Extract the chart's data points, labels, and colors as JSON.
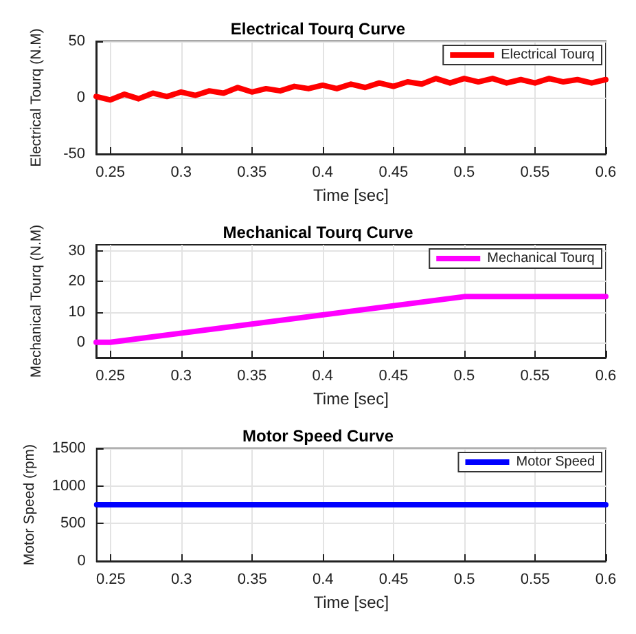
{
  "chart_data": [
    {
      "type": "line",
      "title": "Electrical Tourq Curve",
      "xlabel": "Time [sec]",
      "ylabel": "Electrical Tourq (N.M)",
      "xlim": [
        0.24,
        0.6
      ],
      "xticks": [
        0.25,
        0.3,
        0.35,
        0.4,
        0.45,
        0.5,
        0.55,
        0.6
      ],
      "ylim": [
        -50,
        50
      ],
      "yticks": [
        -50,
        0,
        50
      ],
      "grid": true,
      "legend": "top right",
      "marker": "none",
      "line_style": "solid",
      "series": [
        {
          "name": "Electrical Tourq",
          "color": "#ff0000",
          "x": [
            0.24,
            0.25,
            0.26,
            0.27,
            0.28,
            0.29,
            0.3,
            0.31,
            0.32,
            0.33,
            0.34,
            0.35,
            0.36,
            0.37,
            0.38,
            0.39,
            0.4,
            0.41,
            0.42,
            0.43,
            0.44,
            0.45,
            0.46,
            0.47,
            0.48,
            0.49,
            0.5,
            0.51,
            0.52,
            0.53,
            0.54,
            0.55,
            0.56,
            0.57,
            0.58,
            0.59,
            0.6
          ],
          "values": [
            1,
            -2,
            3,
            -1,
            4,
            1,
            5,
            2,
            6,
            4,
            9,
            5,
            8,
            6,
            10,
            8,
            11,
            8,
            12,
            9,
            13,
            10,
            14,
            12,
            17,
            13,
            17,
            14,
            17,
            13,
            16,
            13,
            17,
            14,
            16,
            13,
            16
          ]
        }
      ]
    },
    {
      "type": "line",
      "title": "Mechanical Tourq Curve",
      "xlabel": "Time [sec]",
      "ylabel": "Mechanical Tourq (N.M)",
      "xlim": [
        0.24,
        0.6
      ],
      "xticks": [
        0.25,
        0.3,
        0.35,
        0.4,
        0.45,
        0.5,
        0.55,
        0.6
      ],
      "ylim": [
        -5,
        32
      ],
      "yticks": [
        0,
        10,
        20,
        30
      ],
      "grid": true,
      "legend": "top right",
      "marker": "none",
      "line_style": "solid",
      "series": [
        {
          "name": "Mechanical Tourq",
          "color": "#ff00ff",
          "x": [
            0.24,
            0.25,
            0.5,
            0.6
          ],
          "values": [
            0,
            0,
            15,
            15
          ]
        }
      ]
    },
    {
      "type": "line",
      "title": "Motor Speed Curve",
      "xlabel": "Time [sec]",
      "ylabel": "Motor Speed (rpm)",
      "xlim": [
        0.24,
        0.6
      ],
      "xticks": [
        0.25,
        0.3,
        0.35,
        0.4,
        0.45,
        0.5,
        0.55,
        0.6
      ],
      "ylim": [
        0,
        1500
      ],
      "yticks": [
        0,
        500,
        1000,
        1500
      ],
      "grid": true,
      "legend": "top right",
      "marker": "none",
      "line_style": "solid",
      "series": [
        {
          "name": "Motor Speed",
          "color": "#0000ff",
          "x": [
            0.24,
            0.6
          ],
          "values": [
            750,
            750
          ]
        }
      ]
    }
  ]
}
